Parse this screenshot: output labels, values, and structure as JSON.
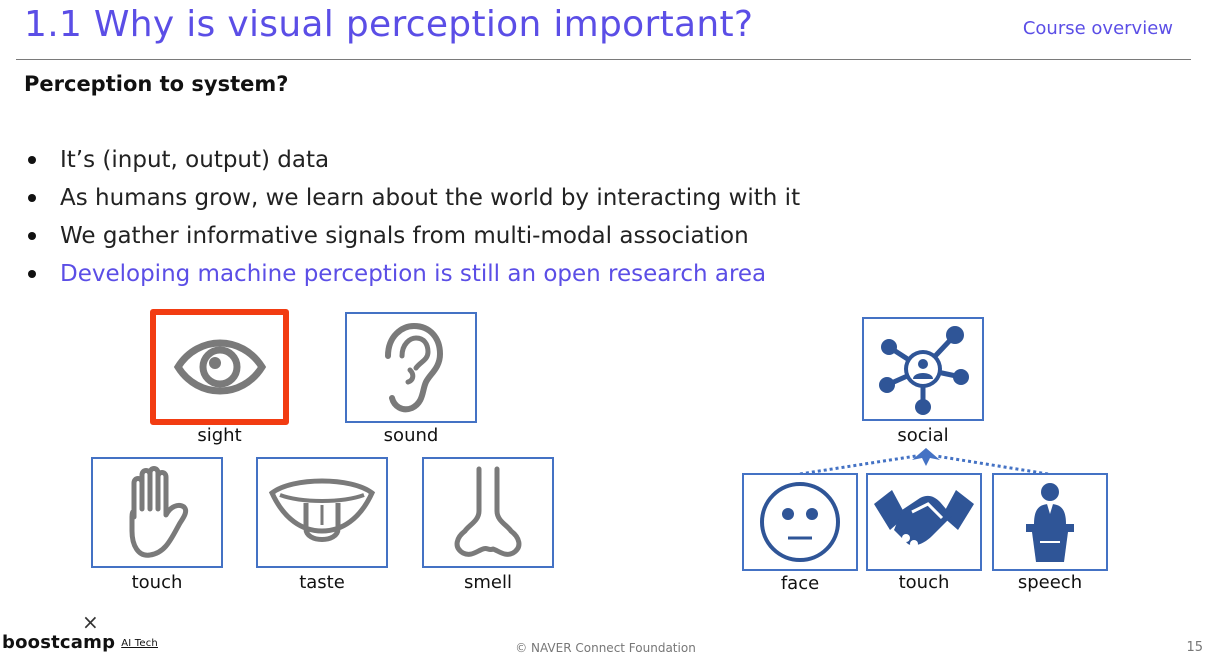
{
  "header": {
    "title": "1.1 Why is visual perception important?",
    "section": "Course overview"
  },
  "subtitle": "Perception to system?",
  "bullets": [
    {
      "text": "It’s (input, output) data"
    },
    {
      "text": "As humans grow, we learn about the world by interacting with it"
    },
    {
      "text": "We gather informative signals from multi-modal association"
    },
    {
      "text": "Developing machine perception is still an open research area"
    }
  ],
  "senses": {
    "sight": "sight",
    "sound": "sound",
    "touch": "touch",
    "taste": "taste",
    "smell": "smell"
  },
  "social": {
    "top": "social",
    "face": "face",
    "touch": "touch",
    "speech": "speech"
  },
  "colors": {
    "accent": "#5b4ee6",
    "box_border": "#4472c4",
    "highlight": "#f23c12",
    "icon_blue": "#2f5597",
    "icon_gray": "#7a7a7a"
  },
  "footer": {
    "logo": "boostcamp",
    "logo_sub": "AI Tech",
    "x_mark": "×",
    "copyright": "© NAVER Connect Foundation",
    "page": "15"
  }
}
